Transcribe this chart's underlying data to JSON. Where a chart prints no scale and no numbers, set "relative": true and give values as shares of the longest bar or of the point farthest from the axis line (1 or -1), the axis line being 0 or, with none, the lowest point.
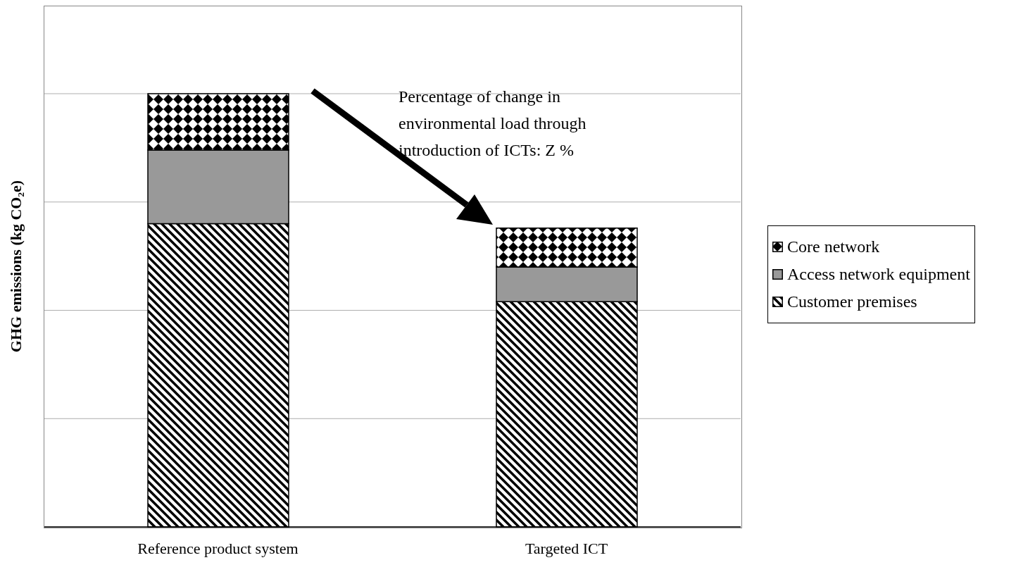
{
  "chart_data": {
    "type": "bar",
    "stacked": true,
    "relative": true,
    "ylabel": "GHG emissions (kg CO₂e)",
    "categories": [
      "Reference product system",
      "Targeted ICT"
    ],
    "series": [
      {
        "name": "Customer premises",
        "color": "#000000",
        "values": [
          0.7,
          0.52
        ]
      },
      {
        "name": "Access network equipment",
        "color": "#999999",
        "values": [
          0.17,
          0.08
        ]
      },
      {
        "name": "Core network",
        "color": "#000000",
        "values": [
          0.13,
          0.09
        ]
      }
    ],
    "annotations": [
      "Percentage of change in environmental load through introduction of ICTs: Z %"
    ],
    "grid": "y",
    "legend": "right"
  }
}
